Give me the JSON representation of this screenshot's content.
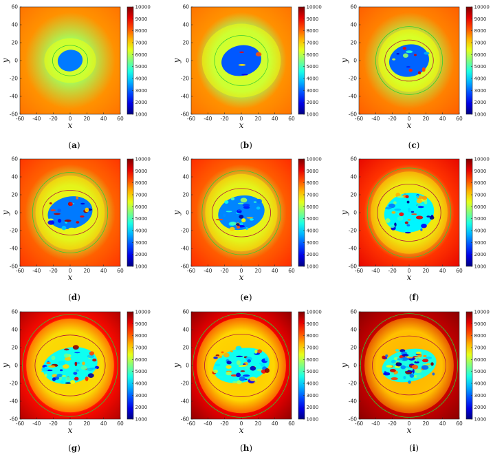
{
  "chart_data": [
    {
      "type": "heatmap",
      "label": "a",
      "xlabel": "x",
      "ylabel": "y",
      "xlim": [
        -60,
        60
      ],
      "ylim": [
        -60,
        60
      ],
      "xticks": [
        -60,
        -40,
        -20,
        0,
        20,
        40,
        60
      ],
      "yticks": [
        -60,
        -40,
        -20,
        0,
        20,
        40,
        60
      ],
      "colorbar": {
        "min": 1000,
        "max": 10000,
        "ticks": [
          1000,
          2000,
          3000,
          4000,
          5000,
          6000,
          7000,
          8000,
          9000,
          10000
        ]
      },
      "background_value": 7300,
      "core_value": 3200,
      "core_radius": [
        15,
        12
      ],
      "inner_contour_radius": [
        21,
        17
      ],
      "outer_contour_radius": null,
      "turbulence": 0.0,
      "edge_heat": 0.0,
      "seed": 11
    },
    {
      "type": "heatmap",
      "label": "b",
      "xlabel": "x",
      "ylabel": "y",
      "xlim": [
        -60,
        60
      ],
      "ylim": [
        -60,
        60
      ],
      "xticks": [
        -60,
        -40,
        -20,
        0,
        20,
        40,
        60
      ],
      "yticks": [
        -60,
        -40,
        -20,
        0,
        20,
        40,
        60
      ],
      "colorbar": {
        "min": 1000,
        "max": 10000,
        "ticks": [
          1000,
          2000,
          3000,
          4000,
          5000,
          6000,
          7000,
          8000,
          9000,
          10000
        ]
      },
      "background_value": 7300,
      "core_value": 2900,
      "core_radius": [
        24,
        17
      ],
      "inner_contour_radius": [
        32,
        28
      ],
      "outer_contour_radius": null,
      "turbulence": 0.05,
      "edge_heat": 0.0,
      "seed": 22
    },
    {
      "type": "heatmap",
      "label": "c",
      "xlabel": "x",
      "ylabel": "y",
      "xlim": [
        -60,
        60
      ],
      "ylim": [
        -60,
        60
      ],
      "xticks": [
        -60,
        -40,
        -20,
        0,
        20,
        40,
        60
      ],
      "yticks": [
        -60,
        -40,
        -20,
        0,
        20,
        40,
        60
      ],
      "colorbar": {
        "min": 1000,
        "max": 10000,
        "ticks": [
          1000,
          2000,
          3000,
          4000,
          5000,
          6000,
          7000,
          8000,
          9000,
          10000
        ]
      },
      "background_value": 7400,
      "core_value": 3000,
      "core_radius": [
        24,
        18
      ],
      "inner_contour_radius": [
        29,
        23
      ],
      "outer_contour_radius": [
        40,
        38
      ],
      "turbulence": 0.15,
      "edge_heat": 0.05,
      "seed": 33
    },
    {
      "type": "heatmap",
      "label": "d",
      "xlabel": "x",
      "ylabel": "y",
      "xlim": [
        -60,
        60
      ],
      "ylim": [
        -60,
        60
      ],
      "xticks": [
        -60,
        -40,
        -20,
        0,
        20,
        40,
        60
      ],
      "yticks": [
        -60,
        -40,
        -20,
        0,
        20,
        40,
        60
      ],
      "colorbar": {
        "min": 1000,
        "max": 10000,
        "ticks": [
          1000,
          2000,
          3000,
          4000,
          5000,
          6000,
          7000,
          8000,
          9000,
          10000
        ]
      },
      "background_value": 7600,
      "core_value": 3200,
      "core_radius": [
        27,
        18
      ],
      "inner_contour_radius": [
        33,
        25
      ],
      "outer_contour_radius": [
        45,
        45
      ],
      "turbulence": 0.3,
      "edge_heat": 0.15,
      "seed": 44
    },
    {
      "type": "heatmap",
      "label": "e",
      "xlabel": "x",
      "ylabel": "y",
      "xlim": [
        -60,
        60
      ],
      "ylim": [
        -60,
        60
      ],
      "xticks": [
        -60,
        -40,
        -20,
        0,
        20,
        40,
        60
      ],
      "yticks": [
        -60,
        -40,
        -20,
        0,
        20,
        40,
        60
      ],
      "colorbar": {
        "min": 1000,
        "max": 10000,
        "ticks": [
          1000,
          2000,
          3000,
          4000,
          5000,
          6000,
          7000,
          8000,
          9000,
          10000
        ]
      },
      "background_value": 7600,
      "core_value": 3300,
      "core_radius": [
        28,
        19
      ],
      "inner_contour_radius": [
        35,
        27
      ],
      "outer_contour_radius": [
        47,
        47
      ],
      "turbulence": 0.4,
      "edge_heat": 0.2,
      "seed": 55
    },
    {
      "type": "heatmap",
      "label": "f",
      "xlabel": "x",
      "ylabel": "y",
      "xlim": [
        -60,
        60
      ],
      "ylim": [
        -60,
        60
      ],
      "xticks": [
        -60,
        -40,
        -20,
        0,
        20,
        40,
        60
      ],
      "yticks": [
        -60,
        -40,
        -20,
        0,
        20,
        40,
        60
      ],
      "colorbar": {
        "min": 1000,
        "max": 10000,
        "ticks": [
          1000,
          2000,
          3000,
          4000,
          5000,
          6000,
          7000,
          8000,
          9000,
          10000
        ]
      },
      "background_value": 7800,
      "core_value": 4300,
      "core_radius": [
        30,
        22
      ],
      "inner_contour_radius": [
        38,
        32
      ],
      "outer_contour_radius": [
        50,
        50
      ],
      "turbulence": 0.6,
      "edge_heat": 0.4,
      "seed": 66
    },
    {
      "type": "heatmap",
      "label": "g",
      "xlabel": "x",
      "ylabel": "y",
      "xlim": [
        -60,
        60
      ],
      "ylim": [
        -60,
        60
      ],
      "xticks": [
        -60,
        -40,
        -20,
        0,
        20,
        40,
        60
      ],
      "yticks": [
        -60,
        -40,
        -20,
        0,
        20,
        40,
        60
      ],
      "colorbar": {
        "min": 1000,
        "max": 10000,
        "ticks": [
          1000,
          2000,
          3000,
          4000,
          5000,
          6000,
          7000,
          8000,
          9000,
          10000
        ]
      },
      "background_value": 8000,
      "core_value": 4500,
      "core_radius": [
        33,
        20
      ],
      "inner_contour_radius": [
        42,
        34
      ],
      "outer_contour_radius": [
        57,
        57
      ],
      "turbulence": 0.7,
      "edge_heat": 0.6,
      "seed": 77
    },
    {
      "type": "heatmap",
      "label": "h",
      "xlabel": "x",
      "ylabel": "y",
      "xlim": [
        -60,
        60
      ],
      "ylim": [
        -60,
        60
      ],
      "xticks": [
        -60,
        -40,
        -20,
        0,
        20,
        40,
        60
      ],
      "yticks": [
        -60,
        -40,
        -20,
        0,
        20,
        40,
        60
      ],
      "colorbar": {
        "min": 1000,
        "max": 10000,
        "ticks": [
          1000,
          2000,
          3000,
          4000,
          5000,
          6000,
          7000,
          8000,
          9000,
          10000
        ]
      },
      "background_value": 8100,
      "core_value": 4500,
      "core_radius": [
        34,
        19
      ],
      "inner_contour_radius": [
        44,
        35
      ],
      "outer_contour_radius": [
        58,
        58
      ],
      "turbulence": 0.8,
      "edge_heat": 0.75,
      "seed": 88
    },
    {
      "type": "heatmap",
      "label": "i",
      "xlabel": "x",
      "ylabel": "y",
      "xlim": [
        -60,
        60
      ],
      "ylim": [
        -60,
        60
      ],
      "xticks": [
        -60,
        -40,
        -20,
        0,
        20,
        40,
        60
      ],
      "yticks": [
        -60,
        -40,
        -20,
        0,
        20,
        40,
        60
      ],
      "colorbar": {
        "min": 1000,
        "max": 10000,
        "ticks": [
          1000,
          2000,
          3000,
          4000,
          5000,
          6000,
          7000,
          8000,
          9000,
          10000
        ]
      },
      "background_value": 8300,
      "core_value": 4600,
      "core_radius": [
        33,
        18
      ],
      "inner_contour_radius": [
        44,
        33
      ],
      "outer_contour_radius": [
        58,
        58
      ],
      "turbulence": 0.9,
      "edge_heat": 0.95,
      "seed": 99
    }
  ],
  "colors": {
    "contour_inner": "#b0143c",
    "contour_outer": "#33cc33",
    "axis": "#262626"
  },
  "captions": {
    "a": "a",
    "b": "b",
    "c": "c",
    "d": "d",
    "e": "e",
    "f": "f",
    "g": "g",
    "h": "h",
    "i": "i"
  }
}
